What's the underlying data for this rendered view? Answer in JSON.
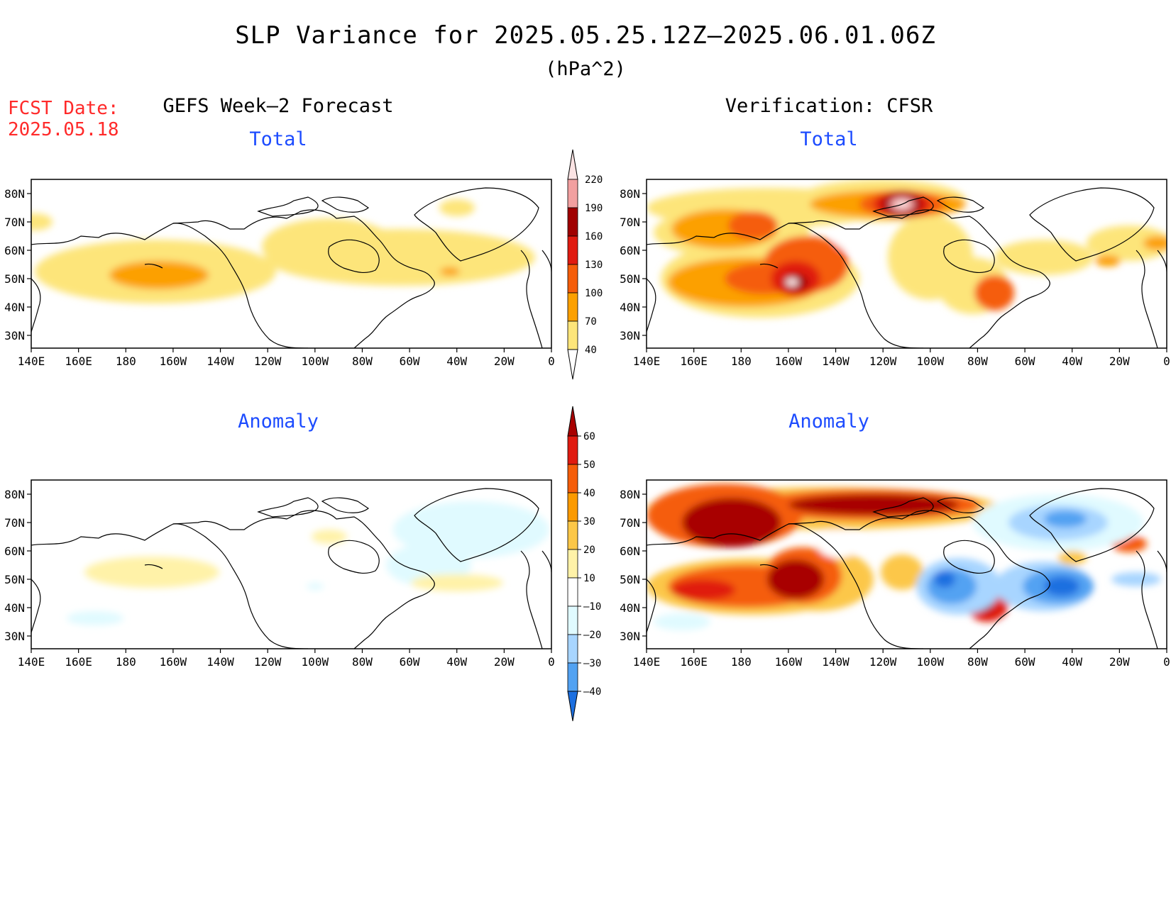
{
  "header": {
    "title": "SLP Variance for 2025.05.25.12Z–2025.06.01.06Z",
    "units": "(hPa^2)",
    "fcst_label": "FCST Date:",
    "fcst_date": "2025.05.18"
  },
  "columns": {
    "left": "GEFS Week–2 Forecast",
    "right": "Verification: CFSR"
  },
  "rows": {
    "top": "Total",
    "bottom": "Anomaly"
  },
  "axes": {
    "lat_labels": [
      "80N",
      "70N",
      "60N",
      "50N",
      "40N",
      "30N"
    ],
    "lon_labels": [
      "140E",
      "160E",
      "180",
      "160W",
      "140W",
      "120W",
      "100W",
      "80W",
      "60W",
      "40W",
      "20W",
      "0"
    ]
  },
  "colorbars": {
    "total": {
      "levels": [
        "220",
        "190",
        "160",
        "130",
        "100",
        "70",
        "40"
      ],
      "colors": [
        "#fbe3e3",
        "#f2a0a0",
        "#a00000",
        "#e01a10",
        "#f55d0a",
        "#fca000",
        "#fde57a"
      ]
    },
    "anomaly": {
      "levels": [
        "60",
        "50",
        "40",
        "30",
        "20",
        "10",
        "–10",
        "–20",
        "–30",
        "–40"
      ],
      "colors": [
        "#a80000",
        "#e01a10",
        "#f55d0a",
        "#fb9a00",
        "#fcc748",
        "#fff2a8",
        "#ffffff",
        "#e0faff",
        "#a8d5ff",
        "#52a2f2",
        "#1c6fe0"
      ]
    }
  }
}
